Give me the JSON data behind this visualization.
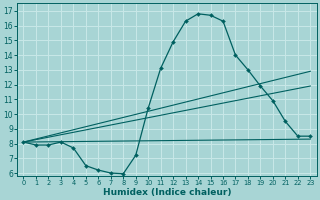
{
  "xlabel": "Humidex (Indice chaleur)",
  "bg_color": "#a8d5d5",
  "grid_color": "#c8e8e8",
  "line_color": "#006060",
  "xlim": [
    -0.5,
    23.5
  ],
  "ylim": [
    5.8,
    17.5
  ],
  "xticks": [
    0,
    1,
    2,
    3,
    4,
    5,
    6,
    7,
    8,
    9,
    10,
    11,
    12,
    13,
    14,
    15,
    16,
    17,
    18,
    19,
    20,
    21,
    22,
    23
  ],
  "yticks": [
    6,
    7,
    8,
    9,
    10,
    11,
    12,
    13,
    14,
    15,
    16,
    17
  ],
  "line1_x": [
    0,
    1,
    2,
    3,
    4,
    5,
    6,
    7,
    8,
    9,
    10,
    11,
    12,
    13,
    14,
    15,
    16,
    17,
    18,
    19,
    20,
    21,
    22,
    23
  ],
  "line1_y": [
    8.1,
    7.9,
    7.9,
    8.1,
    7.7,
    6.5,
    6.2,
    6.0,
    5.95,
    7.2,
    10.4,
    13.1,
    14.9,
    16.3,
    16.8,
    16.7,
    16.3,
    14.0,
    13.0,
    11.9,
    10.9,
    9.5,
    8.5,
    8.5
  ],
  "line2_x": [
    0,
    23
  ],
  "line2_y": [
    8.1,
    12.9
  ],
  "line3_x": [
    0,
    23
  ],
  "line3_y": [
    8.1,
    11.9
  ],
  "line4_x": [
    0,
    23
  ],
  "line4_y": [
    8.1,
    8.3
  ],
  "marker_x": [
    0,
    1,
    2,
    3,
    4,
    5,
    6,
    7,
    8,
    9,
    10,
    11,
    12,
    13,
    14,
    15,
    16,
    17,
    18,
    19,
    20,
    21,
    22,
    23
  ],
  "marker_y": [
    8.1,
    7.9,
    7.9,
    8.1,
    7.7,
    6.5,
    6.2,
    6.0,
    5.95,
    7.2,
    10.4,
    13.1,
    14.9,
    16.3,
    16.8,
    16.7,
    16.3,
    14.0,
    13.0,
    11.9,
    10.9,
    9.5,
    8.5,
    8.5
  ]
}
